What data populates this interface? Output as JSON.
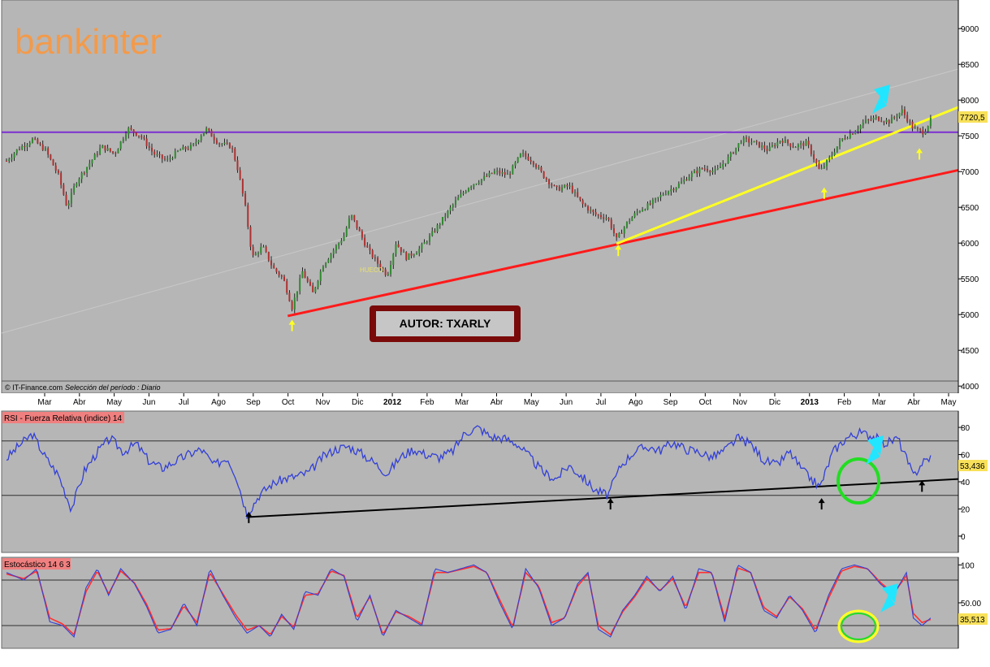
{
  "logo_text": "bankinter",
  "author_label": "AUTOR: TXARLY",
  "hueco_label": "HUECO",
  "source_label": "© IT-Finance.com",
  "period_label": "Selección del período : Diario",
  "colors": {
    "panel_bg": "#b6b6b6",
    "candle_up": "#2f8a2f",
    "candle_down": "#b03030",
    "resistance": "#7a2fd0",
    "red_trend": "#ff1a1a",
    "yellow_trend": "#ffff22",
    "cyan_arrow": "#22e6ff",
    "rsi_line": "#3340d6",
    "stoch_k": "#3340d6",
    "stoch_d": "#ff3030",
    "green_circle": "#22dd22",
    "yellow_circle": "#ffff22",
    "author_border": "#7a0a0a",
    "logo": "#f39a4a"
  },
  "chart_data": [
    {
      "type": "candlestick",
      "name": "price",
      "time_axis_labels": [
        "Mar",
        "Abr",
        "May",
        "Jun",
        "Jul",
        "Ago",
        "Sep",
        "Oct",
        "Nov",
        "Dic",
        "2012",
        "Feb",
        "Mar",
        "Abr",
        "May",
        "Jun",
        "Jul",
        "Ago",
        "Sep",
        "Oct",
        "Nov",
        "Dic",
        "2013",
        "Feb",
        "Mar",
        "Abr",
        "May"
      ],
      "bold_labels": [
        "2012",
        "2013"
      ],
      "y_ticks": [
        4000,
        4500,
        5000,
        5500,
        6000,
        6500,
        7000,
        7500,
        8000,
        8500,
        9000
      ],
      "y_tick_labels": [
        "4000",
        "4500",
        "5000",
        "5500",
        "6000",
        "6500",
        "7000",
        "7500",
        "8000",
        "8500",
        "9000"
      ],
      "ylim": [
        3900,
        9400
      ],
      "last_value_label": "7720,5",
      "last_value": 7720.5,
      "resistance_level": 7550,
      "anchor_points": [
        [
          0,
          7150
        ],
        [
          12,
          7300
        ],
        [
          30,
          7450
        ],
        [
          45,
          7300
        ],
        [
          60,
          6950
        ],
        [
          70,
          6500
        ],
        [
          80,
          6850
        ],
        [
          95,
          7100
        ],
        [
          110,
          7350
        ],
        [
          125,
          7250
        ],
        [
          140,
          7600
        ],
        [
          155,
          7500
        ],
        [
          170,
          7250
        ],
        [
          185,
          7150
        ],
        [
          200,
          7300
        ],
        [
          215,
          7350
        ],
        [
          230,
          7600
        ],
        [
          245,
          7400
        ],
        [
          260,
          7350
        ],
        [
          268,
          7000
        ],
        [
          276,
          6500
        ],
        [
          284,
          5800
        ],
        [
          296,
          5950
        ],
        [
          308,
          5650
        ],
        [
          320,
          5500
        ],
        [
          330,
          5100
        ],
        [
          342,
          5600
        ],
        [
          354,
          5300
        ],
        [
          366,
          5700
        ],
        [
          378,
          5900
        ],
        [
          390,
          6100
        ],
        [
          398,
          6400
        ],
        [
          406,
          6200
        ],
        [
          418,
          5900
        ],
        [
          430,
          5700
        ],
        [
          440,
          5550
        ],
        [
          450,
          6000
        ],
        [
          462,
          5800
        ],
        [
          476,
          5900
        ],
        [
          490,
          6100
        ],
        [
          505,
          6350
        ],
        [
          520,
          6600
        ],
        [
          535,
          6800
        ],
        [
          550,
          6900
        ],
        [
          565,
          7000
        ],
        [
          580,
          6950
        ],
        [
          595,
          7250
        ],
        [
          608,
          7150
        ],
        [
          620,
          6950
        ],
        [
          635,
          6750
        ],
        [
          650,
          6800
        ],
        [
          665,
          6550
        ],
        [
          680,
          6400
        ],
        [
          695,
          6350
        ],
        [
          705,
          6050
        ],
        [
          718,
          6300
        ],
        [
          730,
          6450
        ],
        [
          745,
          6550
        ],
        [
          760,
          6700
        ],
        [
          775,
          6800
        ],
        [
          790,
          6950
        ],
        [
          805,
          7050
        ],
        [
          820,
          7000
        ],
        [
          835,
          7200
        ],
        [
          850,
          7450
        ],
        [
          865,
          7400
        ],
        [
          880,
          7300
        ],
        [
          895,
          7450
        ],
        [
          910,
          7350
        ],
        [
          925,
          7400
        ],
        [
          940,
          7000
        ],
        [
          952,
          7200
        ],
        [
          965,
          7450
        ],
        [
          978,
          7550
        ],
        [
          992,
          7700
        ],
        [
          1005,
          7750
        ],
        [
          1020,
          7700
        ],
        [
          1035,
          7850
        ],
        [
          1048,
          7600
        ],
        [
          1060,
          7550
        ],
        [
          1068,
          7720
        ]
      ],
      "marker_points": [
        [
          330,
          4950
        ],
        [
          707,
          6000
        ],
        [
          945,
          6800
        ],
        [
          1055,
          7350
        ]
      ]
    },
    {
      "type": "line",
      "name": "RSI",
      "panel_title": "RSI - Fuerza Relativa (indice) 14",
      "y_ticks": [
        0,
        20,
        40,
        60,
        80
      ],
      "y_tick_labels": [
        "0",
        "20",
        "40",
        "60",
        "80"
      ],
      "ylim": [
        -12,
        92
      ],
      "h_levels": [
        30,
        70
      ],
      "last_value_label": "53,436",
      "last_value": 53.436,
      "anchor_points": [
        [
          0,
          57
        ],
        [
          15,
          67
        ],
        [
          30,
          75
        ],
        [
          45,
          58
        ],
        [
          60,
          45
        ],
        [
          75,
          20
        ],
        [
          90,
          48
        ],
        [
          105,
          62
        ],
        [
          120,
          72
        ],
        [
          135,
          62
        ],
        [
          150,
          68
        ],
        [
          165,
          55
        ],
        [
          180,
          50
        ],
        [
          195,
          55
        ],
        [
          210,
          60
        ],
        [
          225,
          64
        ],
        [
          240,
          52
        ],
        [
          255,
          58
        ],
        [
          265,
          45
        ],
        [
          278,
          16
        ],
        [
          292,
          30
        ],
        [
          306,
          38
        ],
        [
          320,
          42
        ],
        [
          335,
          44
        ],
        [
          350,
          47
        ],
        [
          365,
          58
        ],
        [
          380,
          64
        ],
        [
          395,
          66
        ],
        [
          410,
          61
        ],
        [
          425,
          54
        ],
        [
          440,
          46
        ],
        [
          455,
          58
        ],
        [
          470,
          64
        ],
        [
          485,
          60
        ],
        [
          500,
          58
        ],
        [
          515,
          62
        ],
        [
          530,
          76
        ],
        [
          545,
          80
        ],
        [
          560,
          73
        ],
        [
          575,
          72
        ],
        [
          590,
          68
        ],
        [
          605,
          58
        ],
        [
          620,
          47
        ],
        [
          635,
          42
        ],
        [
          650,
          52
        ],
        [
          665,
          44
        ],
        [
          680,
          34
        ],
        [
          695,
          30
        ],
        [
          710,
          52
        ],
        [
          725,
          62
        ],
        [
          740,
          66
        ],
        [
          755,
          63
        ],
        [
          770,
          69
        ],
        [
          785,
          64
        ],
        [
          800,
          62
        ],
        [
          815,
          58
        ],
        [
          830,
          63
        ],
        [
          845,
          72
        ],
        [
          860,
          68
        ],
        [
          875,
          56
        ],
        [
          890,
          52
        ],
        [
          905,
          62
        ],
        [
          920,
          48
        ],
        [
          940,
          36
        ],
        [
          955,
          62
        ],
        [
          970,
          72
        ],
        [
          985,
          76
        ],
        [
          1000,
          74
        ],
        [
          1015,
          68
        ],
        [
          1030,
          72
        ],
        [
          1040,
          57
        ],
        [
          1048,
          44
        ],
        [
          1058,
          54
        ],
        [
          1068,
          58
        ]
      ],
      "marker_points": [
        [
          280,
          12
        ],
        [
          698,
          22
        ],
        [
          942,
          22
        ],
        [
          1058,
          35
        ]
      ]
    },
    {
      "type": "line",
      "name": "Estocastico",
      "panel_title": "Estocástico 14 6 3",
      "y_ticks": [
        50,
        100
      ],
      "y_tick_labels": [
        "50.00",
        "100"
      ],
      "ylim": [
        -10,
        110
      ],
      "h_levels": [
        20,
        80
      ],
      "last_value_label": "35,513",
      "last_value": 35.513,
      "series": [
        {
          "name": "%K",
          "values_ref": "anchor_points"
        },
        {
          "name": "%D",
          "values_ref": "anchor_points_d"
        }
      ],
      "anchor_points": [
        [
          0,
          90
        ],
        [
          20,
          80
        ],
        [
          35,
          95
        ],
        [
          50,
          25
        ],
        [
          65,
          20
        ],
        [
          78,
          5
        ],
        [
          92,
          70
        ],
        [
          105,
          95
        ],
        [
          118,
          60
        ],
        [
          132,
          95
        ],
        [
          148,
          75
        ],
        [
          162,
          45
        ],
        [
          175,
          10
        ],
        [
          190,
          15
        ],
        [
          205,
          50
        ],
        [
          220,
          20
        ],
        [
          235,
          95
        ],
        [
          250,
          60
        ],
        [
          265,
          30
        ],
        [
          278,
          10
        ],
        [
          292,
          20
        ],
        [
          305,
          5
        ],
        [
          318,
          35
        ],
        [
          332,
          15
        ],
        [
          345,
          65
        ],
        [
          360,
          60
        ],
        [
          375,
          95
        ],
        [
          390,
          85
        ],
        [
          405,
          25
        ],
        [
          420,
          60
        ],
        [
          435,
          5
        ],
        [
          450,
          40
        ],
        [
          465,
          30
        ],
        [
          480,
          20
        ],
        [
          495,
          95
        ],
        [
          510,
          90
        ],
        [
          525,
          95
        ],
        [
          540,
          100
        ],
        [
          555,
          90
        ],
        [
          570,
          50
        ],
        [
          585,
          15
        ],
        [
          600,
          95
        ],
        [
          615,
          70
        ],
        [
          630,
          20
        ],
        [
          645,
          30
        ],
        [
          660,
          75
        ],
        [
          672,
          90
        ],
        [
          684,
          15
        ],
        [
          698,
          5
        ],
        [
          712,
          40
        ],
        [
          726,
          60
        ],
        [
          740,
          85
        ],
        [
          755,
          65
        ],
        [
          770,
          85
        ],
        [
          785,
          40
        ],
        [
          800,
          95
        ],
        [
          815,
          90
        ],
        [
          830,
          25
        ],
        [
          845,
          100
        ],
        [
          860,
          90
        ],
        [
          875,
          40
        ],
        [
          890,
          30
        ],
        [
          905,
          60
        ],
        [
          920,
          40
        ],
        [
          935,
          10
        ],
        [
          950,
          60
        ],
        [
          965,
          95
        ],
        [
          980,
          100
        ],
        [
          995,
          95
        ],
        [
          1010,
          75
        ],
        [
          1025,
          60
        ],
        [
          1040,
          90
        ],
        [
          1048,
          30
        ],
        [
          1058,
          20
        ],
        [
          1068,
          30
        ]
      ],
      "anchor_points_d": [
        [
          0,
          88
        ],
        [
          20,
          82
        ],
        [
          35,
          92
        ],
        [
          50,
          30
        ],
        [
          65,
          22
        ],
        [
          78,
          8
        ],
        [
          92,
          65
        ],
        [
          105,
          92
        ],
        [
          118,
          62
        ],
        [
          132,
          92
        ],
        [
          148,
          76
        ],
        [
          162,
          48
        ],
        [
          175,
          14
        ],
        [
          190,
          16
        ],
        [
          205,
          46
        ],
        [
          220,
          24
        ],
        [
          235,
          90
        ],
        [
          250,
          62
        ],
        [
          265,
          34
        ],
        [
          278,
          14
        ],
        [
          292,
          20
        ],
        [
          305,
          8
        ],
        [
          318,
          32
        ],
        [
          332,
          18
        ],
        [
          345,
          60
        ],
        [
          360,
          62
        ],
        [
          375,
          92
        ],
        [
          390,
          86
        ],
        [
          405,
          30
        ],
        [
          420,
          58
        ],
        [
          435,
          8
        ],
        [
          450,
          38
        ],
        [
          465,
          32
        ],
        [
          480,
          22
        ],
        [
          495,
          90
        ],
        [
          510,
          90
        ],
        [
          525,
          94
        ],
        [
          540,
          98
        ],
        [
          555,
          90
        ],
        [
          570,
          54
        ],
        [
          585,
          18
        ],
        [
          600,
          90
        ],
        [
          615,
          72
        ],
        [
          630,
          24
        ],
        [
          645,
          30
        ],
        [
          660,
          72
        ],
        [
          672,
          88
        ],
        [
          684,
          20
        ],
        [
          698,
          8
        ],
        [
          712,
          38
        ],
        [
          726,
          58
        ],
        [
          740,
          82
        ],
        [
          755,
          66
        ],
        [
          770,
          82
        ],
        [
          785,
          44
        ],
        [
          800,
          90
        ],
        [
          815,
          90
        ],
        [
          830,
          30
        ],
        [
          845,
          96
        ],
        [
          860,
          90
        ],
        [
          875,
          44
        ],
        [
          890,
          32
        ],
        [
          905,
          58
        ],
        [
          920,
          42
        ],
        [
          935,
          14
        ],
        [
          950,
          56
        ],
        [
          965,
          92
        ],
        [
          980,
          98
        ],
        [
          995,
          95
        ],
        [
          1010,
          77
        ],
        [
          1025,
          62
        ],
        [
          1040,
          86
        ],
        [
          1048,
          36
        ],
        [
          1058,
          24
        ],
        [
          1068,
          28
        ]
      ]
    }
  ]
}
